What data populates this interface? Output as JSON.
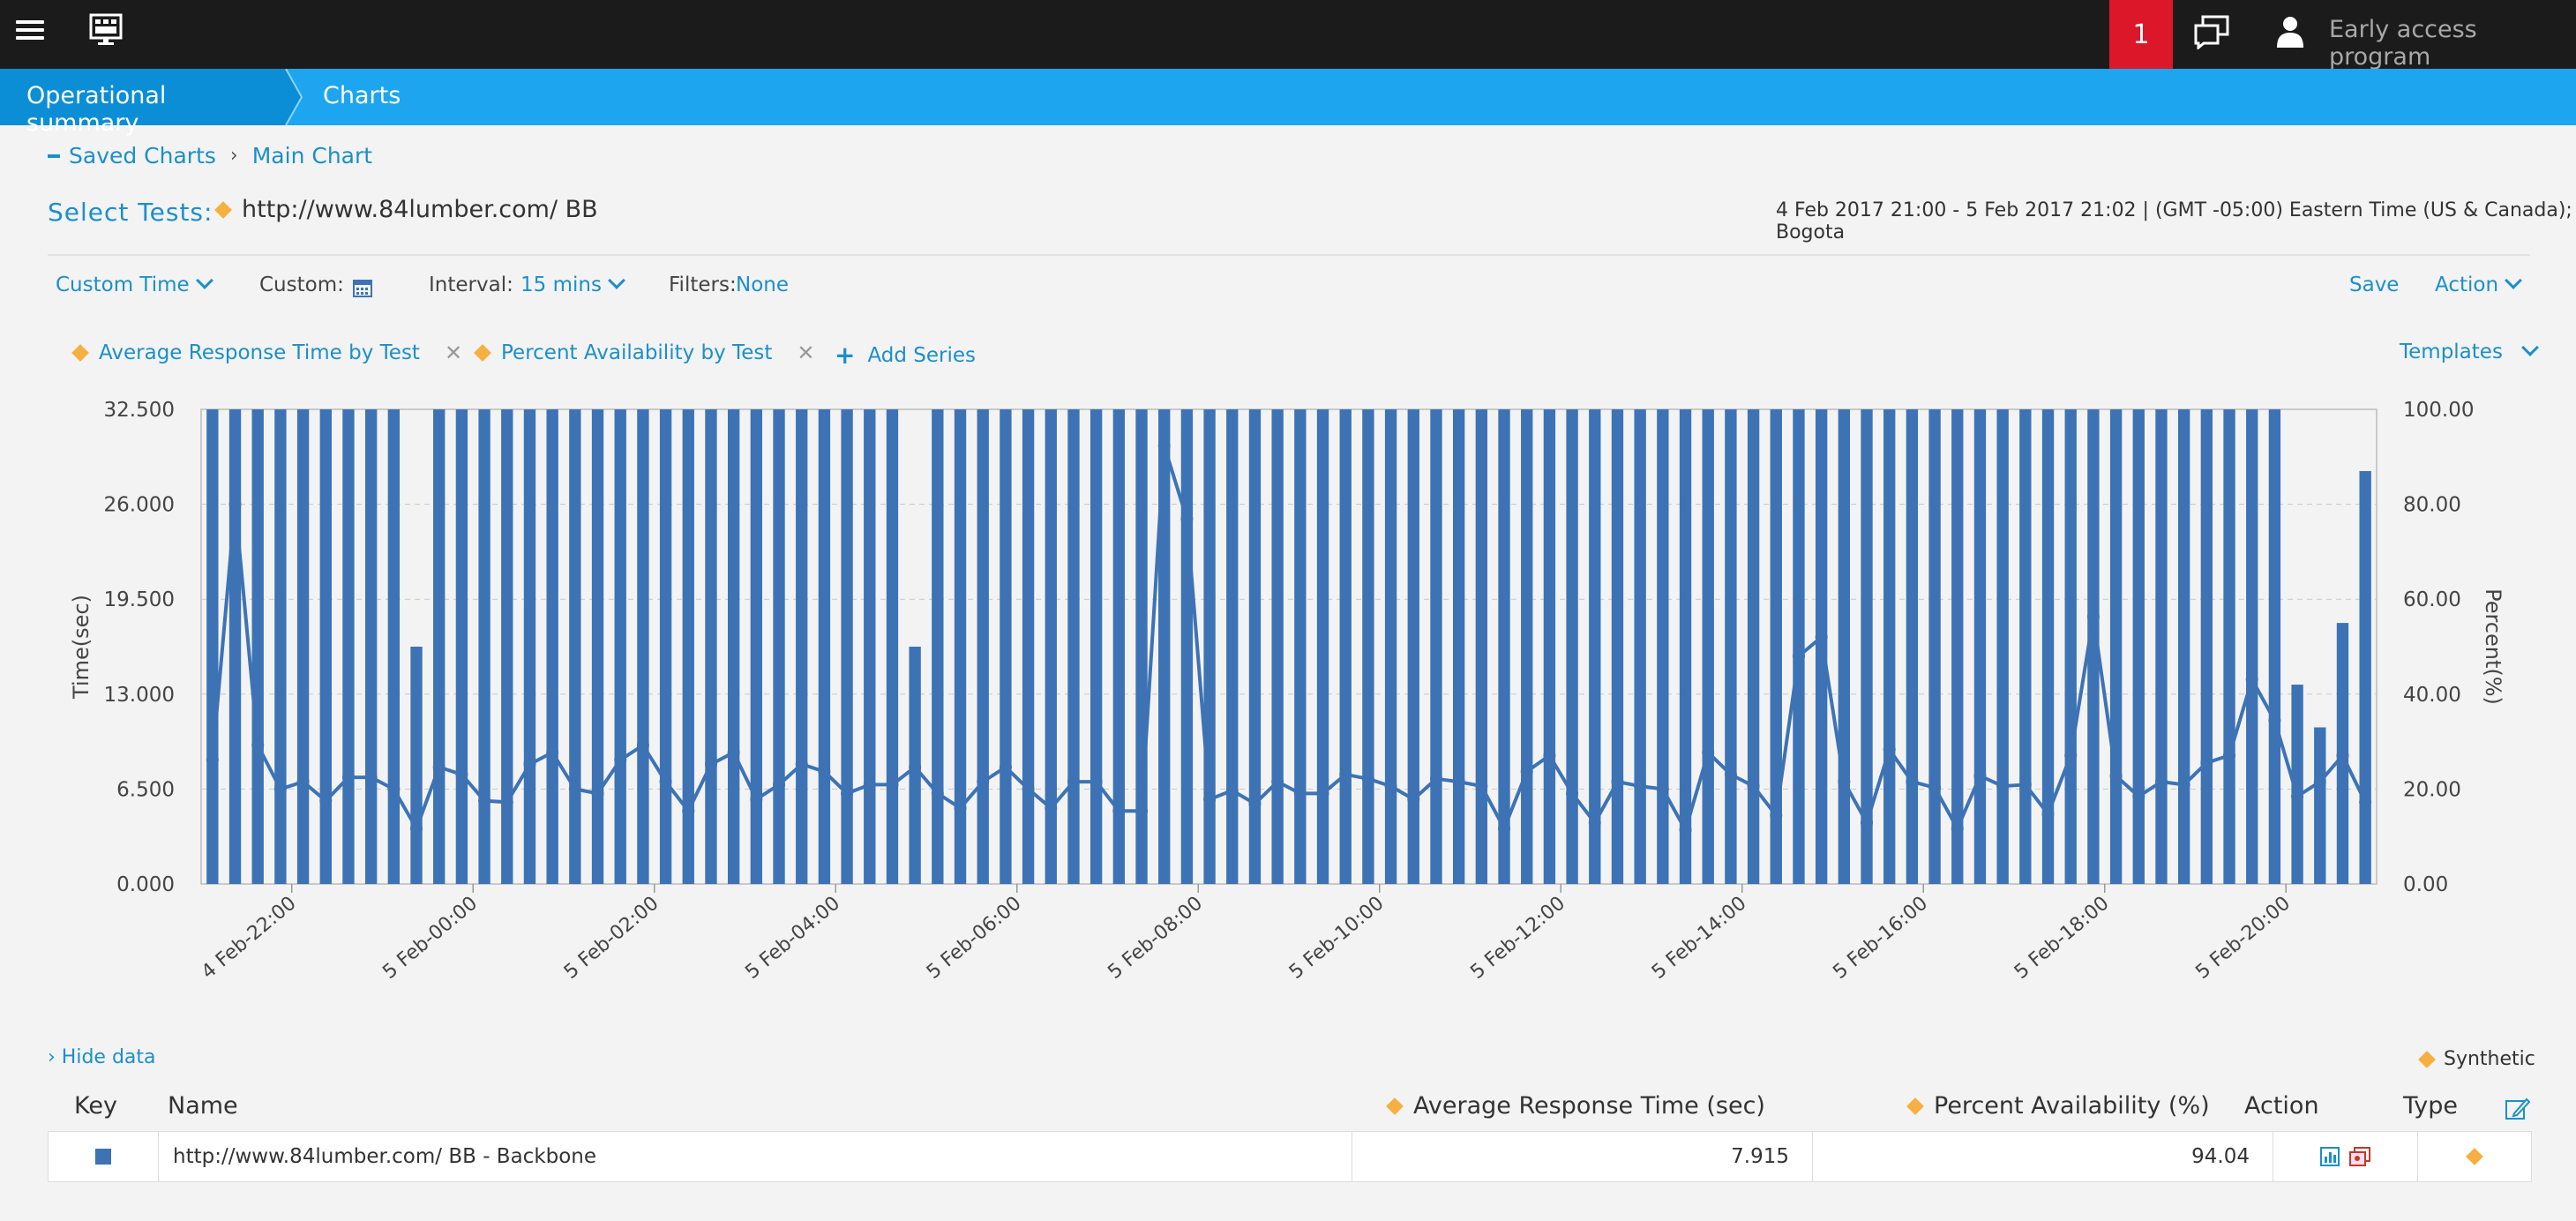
{
  "topbar": {
    "alert_count": "1",
    "user_label": "Early access program"
  },
  "breadcrumb": {
    "items": [
      "Operational summary",
      "Charts"
    ]
  },
  "saved_path": {
    "root": "Saved Charts",
    "current": "Main Chart"
  },
  "select_tests": {
    "label": "Select Tests:",
    "test": "http://www.84lumber.com/ BB"
  },
  "date_range": "4 Feb 2017 21:00 - 5 Feb 2017 21:02  | (GMT -05:00) Eastern Time (US & Canada); Bogota",
  "controls": {
    "time_mode": "Custom Time",
    "custom_label": "Custom:",
    "interval_label": "Interval:",
    "interval_value": "15 mins",
    "filters_label": "Filters:",
    "filters_value": "None",
    "save": "Save",
    "action": "Action",
    "templates": "Templates"
  },
  "series_chips": [
    "Average Response Time by Test",
    "Percent Availability by Test"
  ],
  "add_series": "Add Series",
  "hide_data": "› Hide data",
  "synthetic": "Synthetic",
  "table": {
    "headers": {
      "key": "Key",
      "name": "Name",
      "avg": "Average Response Time (sec)",
      "pct": "Percent Availability (%)",
      "action": "Action",
      "type": "Type"
    },
    "rows": [
      {
        "name": "http://www.84lumber.com/ BB - Backbone",
        "avg": "7.915",
        "pct": "94.04"
      }
    ]
  },
  "colors": {
    "series": "#3d73b5",
    "accent": "#1c8fc8",
    "alert": "#dc172a",
    "diamond": "#f5b041"
  },
  "chart_data": {
    "type": "bar",
    "y_left": {
      "label": "Time(sec)",
      "min": 0,
      "max": 32.5,
      "ticks": [
        "32.500",
        "26.000",
        "19.500",
        "13.000",
        "6.500",
        "0.000"
      ]
    },
    "y_right": {
      "label": "Percent(%)",
      "min": 0,
      "max": 100,
      "ticks": [
        "100.00",
        "80.00",
        "60.00",
        "40.00",
        "20.00",
        "0.00"
      ]
    },
    "x_tick_labels": [
      "4 Feb-22:00",
      "5 Feb-00:00",
      "5 Feb-02:00",
      "5 Feb-04:00",
      "5 Feb-06:00",
      "5 Feb-08:00",
      "5 Feb-10:00",
      "5 Feb-12:00",
      "5 Feb-14:00",
      "5 Feb-16:00",
      "5 Feb-18:00",
      "5 Feb-20:00"
    ],
    "series": [
      {
        "type": "bar",
        "axis": "right",
        "values": [
          100,
          100,
          100,
          100,
          100,
          100,
          100,
          100,
          100,
          50,
          100,
          100,
          100,
          100,
          100,
          100,
          100,
          100,
          100,
          100,
          100,
          100,
          100,
          100,
          100,
          100,
          100,
          100,
          100,
          100,
          100,
          50,
          100,
          100,
          100,
          100,
          100,
          100,
          100,
          100,
          100,
          100,
          100,
          100,
          100,
          100,
          100,
          100,
          100,
          100,
          100,
          100,
          100,
          100,
          100,
          100,
          100,
          100,
          100,
          100,
          100,
          100,
          100,
          100,
          100,
          100,
          100,
          100,
          100,
          100,
          100,
          100,
          100,
          100,
          100,
          100,
          100,
          100,
          100,
          100,
          100,
          100,
          100,
          100,
          100,
          100,
          100,
          100,
          100,
          100,
          100,
          100,
          42,
          33,
          55,
          87
        ]
      },
      {
        "type": "line",
        "axis": "left",
        "values": [
          8.5,
          26,
          9.5,
          6.5,
          7,
          5.7,
          7.3,
          7.3,
          6.5,
          3.8,
          8,
          7.5,
          5.7,
          5.6,
          8.2,
          9,
          6.5,
          6.2,
          8.5,
          9.5,
          7,
          5,
          8.2,
          9,
          5.8,
          6.8,
          8.2,
          7.7,
          6.2,
          6.8,
          6.8,
          8,
          6.2,
          5.2,
          7,
          8,
          6.5,
          5.2,
          7,
          7,
          5,
          5,
          30,
          25,
          5.8,
          6.4,
          5.5,
          7,
          6.2,
          6.2,
          7.5,
          7.2,
          6.7,
          5.8,
          7.2,
          7,
          6.7,
          3.8,
          7.7,
          8.8,
          6.2,
          4.2,
          7,
          6.7,
          6.5,
          3.7,
          9,
          7.5,
          6.7,
          4.7,
          15.6,
          16.9,
          7,
          4.2,
          9.2,
          7,
          6.6,
          3.8,
          7.4,
          6.7,
          6.8,
          4.8,
          8.8,
          18.3,
          7.4,
          6,
          7,
          6.8,
          8.3,
          8.8,
          14,
          11.2,
          6,
          7,
          8.8,
          5.6
        ]
      }
    ]
  }
}
